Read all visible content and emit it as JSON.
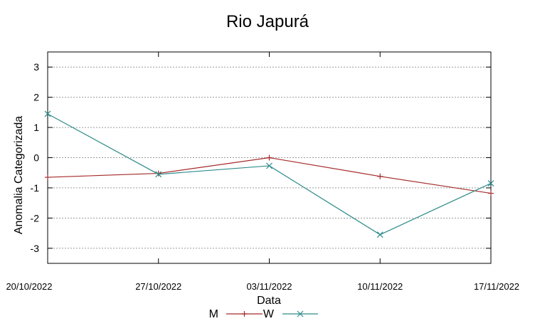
{
  "chart_data": {
    "type": "line",
    "title": "Rio Japurá",
    "xlabel": "Data",
    "ylabel": "Anomalia Categorizada",
    "categories": [
      "20/10/2022",
      "27/10/2022",
      "03/11/2022",
      "10/11/2022",
      "17/11/2022"
    ],
    "yticks": [
      "3",
      "2",
      "1",
      "0",
      "-1",
      "-2",
      "-3"
    ],
    "ylim": [
      -3.5,
      3.5
    ],
    "grid": true,
    "legend_position": "bottom-center",
    "series": [
      {
        "name": "M",
        "color": "#a52a2a",
        "marker": "plus",
        "values": [
          -0.65,
          -0.52,
          0.0,
          -0.62,
          -1.18
        ]
      },
      {
        "name": "W",
        "color": "#2e8b8b",
        "marker": "x",
        "values": [
          1.45,
          -0.55,
          -0.27,
          -2.55,
          -0.85
        ]
      }
    ]
  }
}
